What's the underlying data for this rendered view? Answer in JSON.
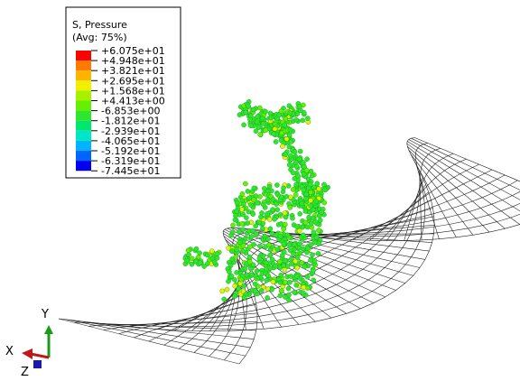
{
  "legend": {
    "title": "S, Pressure",
    "subtitle": "(Avg: 75%)",
    "labels": [
      "+6.075e+01",
      "+4.948e+01",
      "+3.821e+01",
      "+2.695e+01",
      "+1.568e+01",
      "+4.413e+00",
      "-6.853e+00",
      "-1.812e+01",
      "-2.939e+01",
      "-4.065e+01",
      "-5.192e+01",
      "-6.319e+01",
      "-7.445e+01"
    ],
    "colors": [
      "#ff0000",
      "#ff7a00",
      "#ffb400",
      "#f0f000",
      "#a8f000",
      "#64f000",
      "#2ee62e",
      "#00e66e",
      "#00e6c8",
      "#00b4ff",
      "#0064ff",
      "#0000f0"
    ]
  },
  "triad": {
    "x": "X",
    "y": "Y",
    "z": "Z"
  }
}
